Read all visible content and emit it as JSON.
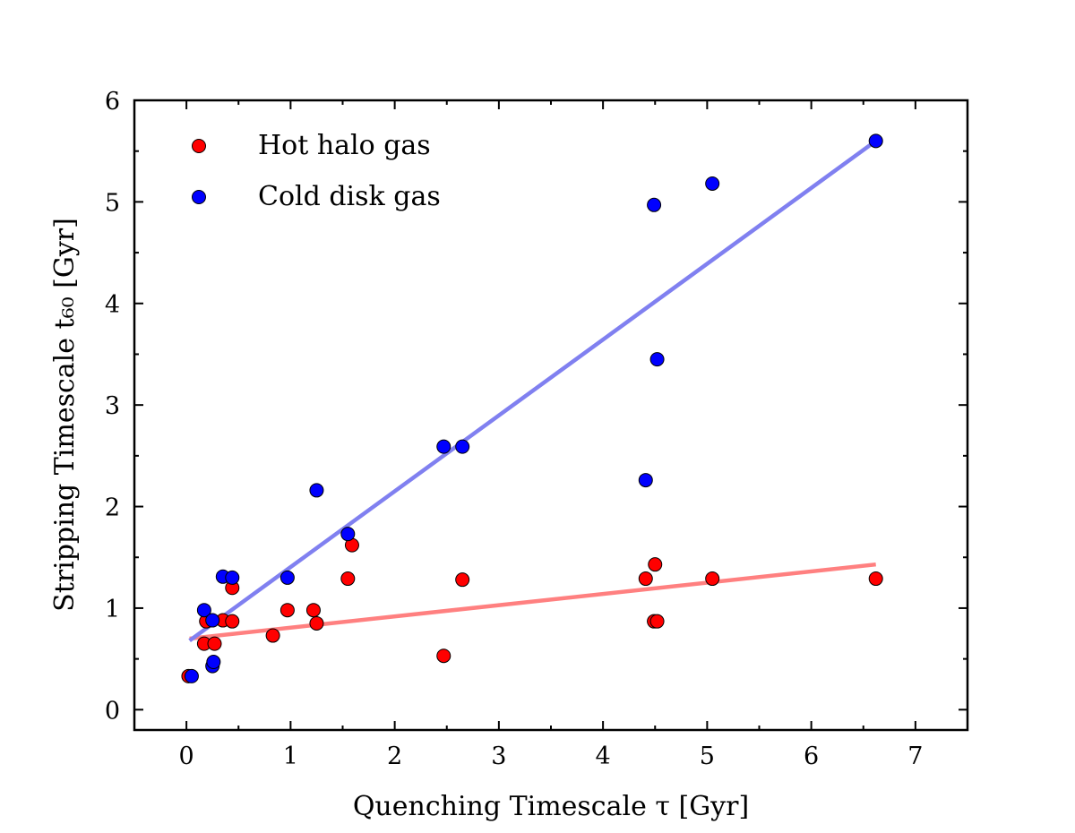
{
  "chart_data": {
    "type": "scatter",
    "title": "",
    "xlabel": "Quenching Timescale τ [Gyr]",
    "ylabel": "Stripping Timescale t₆₀ [Gyr]",
    "xlim": [
      -0.5,
      7.5
    ],
    "ylim": [
      -0.2,
      6.0
    ],
    "x_ticks": [
      0,
      1,
      2,
      3,
      4,
      5,
      6,
      7
    ],
    "y_ticks": [
      0,
      1,
      2,
      3,
      4,
      5,
      6
    ],
    "x_tick_labels": [
      "0",
      "1",
      "2",
      "3",
      "4",
      "5",
      "6",
      "7"
    ],
    "y_tick_labels": [
      "0",
      "1",
      "2",
      "3",
      "4",
      "5",
      "6"
    ],
    "grid": false,
    "legend": "top-left",
    "series": [
      {
        "name": "Hot halo gas",
        "color": "#ff0000",
        "fit_color": "#ff8080",
        "fit": [
          [
            0.03,
            0.7
          ],
          [
            6.62,
            1.43
          ]
        ],
        "points": [
          [
            0.02,
            0.33
          ],
          [
            0.17,
            0.65
          ],
          [
            0.19,
            0.87
          ],
          [
            0.27,
            0.65
          ],
          [
            0.35,
            0.88
          ],
          [
            0.44,
            1.2
          ],
          [
            0.44,
            0.87
          ],
          [
            0.83,
            0.73
          ],
          [
            0.97,
            0.98
          ],
          [
            1.22,
            0.98
          ],
          [
            1.25,
            0.85
          ],
          [
            1.55,
            1.29
          ],
          [
            1.59,
            1.62
          ],
          [
            2.47,
            0.53
          ],
          [
            2.65,
            1.28
          ],
          [
            4.41,
            1.29
          ],
          [
            4.49,
            0.87
          ],
          [
            4.5,
            1.43
          ],
          [
            4.52,
            0.87
          ],
          [
            5.05,
            1.29
          ],
          [
            6.62,
            1.29
          ]
        ]
      },
      {
        "name": "Cold disk gas",
        "color": "#0000ff",
        "fit_color": "#8080f0",
        "fit": [
          [
            0.03,
            0.68
          ],
          [
            6.62,
            5.6
          ]
        ],
        "points": [
          [
            0.05,
            0.33
          ],
          [
            0.17,
            0.98
          ],
          [
            0.25,
            0.43
          ],
          [
            0.26,
            0.47
          ],
          [
            0.25,
            0.88
          ],
          [
            0.35,
            1.31
          ],
          [
            0.44,
            1.3
          ],
          [
            0.97,
            1.3
          ],
          [
            1.25,
            2.16
          ],
          [
            1.55,
            1.73
          ],
          [
            2.47,
            2.59
          ],
          [
            2.65,
            2.59
          ],
          [
            4.41,
            2.26
          ],
          [
            4.49,
            4.97
          ],
          [
            4.52,
            3.45
          ],
          [
            5.05,
            5.18
          ],
          [
            6.62,
            5.6
          ]
        ]
      }
    ]
  }
}
